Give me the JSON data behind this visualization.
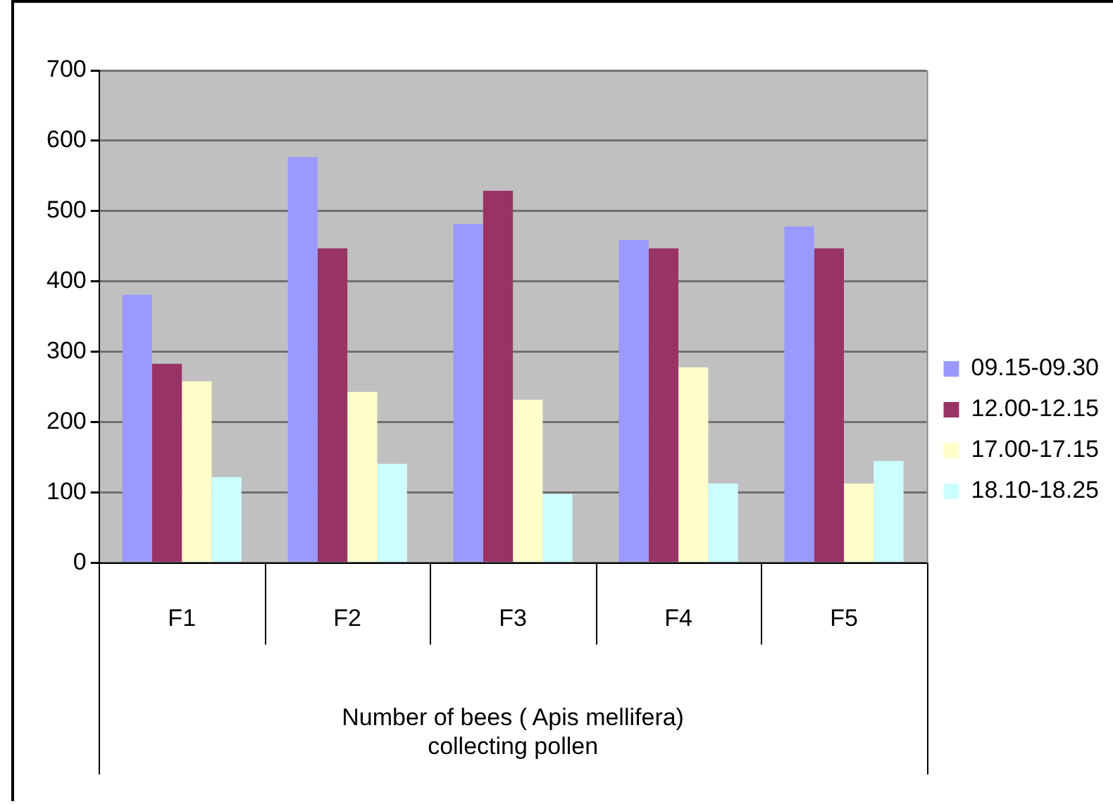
{
  "chart_data": {
    "type": "bar",
    "xlabel": "Number of bees ( Apis mellifera)\ncollecting pollen",
    "categories": [
      "F1",
      "F2",
      "F3",
      "F4",
      "F5"
    ],
    "series": [
      {
        "name": "09.15-09.30",
        "color": "#9999ff",
        "values": [
          381,
          577,
          482,
          459,
          478
        ]
      },
      {
        "name": "12.00-12.15",
        "color": "#993366",
        "values": [
          283,
          447,
          529,
          447,
          447
        ]
      },
      {
        "name": "17.00-17.15",
        "color": "#ffffcc",
        "values": [
          258,
          243,
          232,
          278,
          113
        ]
      },
      {
        "name": "18.10-18.25",
        "color": "#ccffff",
        "values": [
          122,
          141,
          98,
          113,
          145
        ]
      }
    ],
    "ylim": [
      0,
      700
    ],
    "yticks": [
      0,
      100,
      200,
      300,
      400,
      500,
      600,
      700
    ],
    "grid": "y",
    "legend": "right"
  }
}
